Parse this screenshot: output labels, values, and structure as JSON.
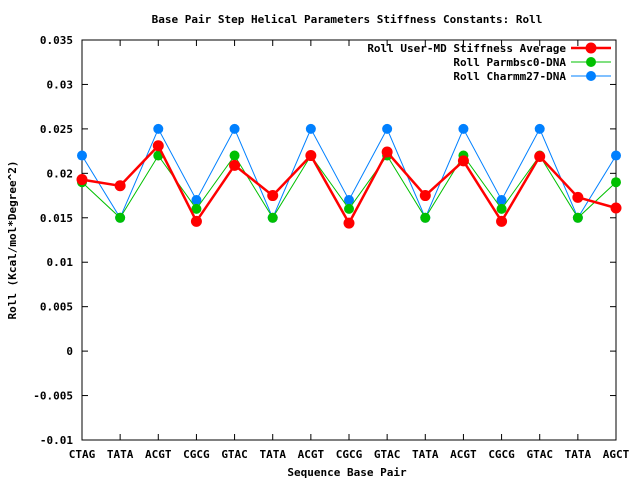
{
  "chart_data": {
    "type": "line",
    "title": "Base Pair Step Helical Parameters Stiffness Constants: Roll",
    "xlabel": "Sequence Base Pair",
    "ylabel": "Roll (Kcal/mol*Degree^2)",
    "categories": [
      "CTAG",
      "TATA",
      "ACGT",
      "CGCG",
      "GTAC",
      "TATA",
      "ACGT",
      "CGCG",
      "GTAC",
      "TATA",
      "ACGT",
      "CGCG",
      "GTAC",
      "TATA",
      "AGCT"
    ],
    "ylim": [
      -0.01,
      0.035
    ],
    "yticks": [
      -0.01,
      -0.005,
      0,
      0.005,
      0.01,
      0.015,
      0.02,
      0.025,
      0.03,
      0.035
    ],
    "ytick_labels": [
      "-0.01",
      "-0.005",
      "0",
      "0.005",
      "0.01",
      "0.015",
      "0.02",
      "0.025",
      "0.03",
      "0.035"
    ],
    "grid": false,
    "legend_position": "top-right",
    "series": [
      {
        "name": "Roll User-MD Stiffness Average",
        "color": "#ff0000",
        "values": [
          0.0193,
          0.0186,
          0.0231,
          0.0146,
          0.0209,
          0.0175,
          0.022,
          0.0144,
          0.0224,
          0.0175,
          0.0214,
          0.0146,
          0.0219,
          0.0173,
          0.0161
        ]
      },
      {
        "name": "Roll Parmbsc0-DNA",
        "color": "#00c000",
        "values": [
          0.019,
          0.015,
          0.022,
          0.016,
          0.022,
          0.015,
          0.022,
          0.016,
          0.022,
          0.015,
          0.022,
          0.016,
          0.022,
          0.015,
          0.019
        ]
      },
      {
        "name": "Roll Charmm27-DNA",
        "color": "#0080ff",
        "values": [
          0.022,
          0.015,
          0.025,
          0.017,
          0.025,
          0.015,
          0.025,
          0.017,
          0.025,
          0.015,
          0.025,
          0.017,
          0.025,
          0.015,
          0.022
        ]
      }
    ]
  }
}
